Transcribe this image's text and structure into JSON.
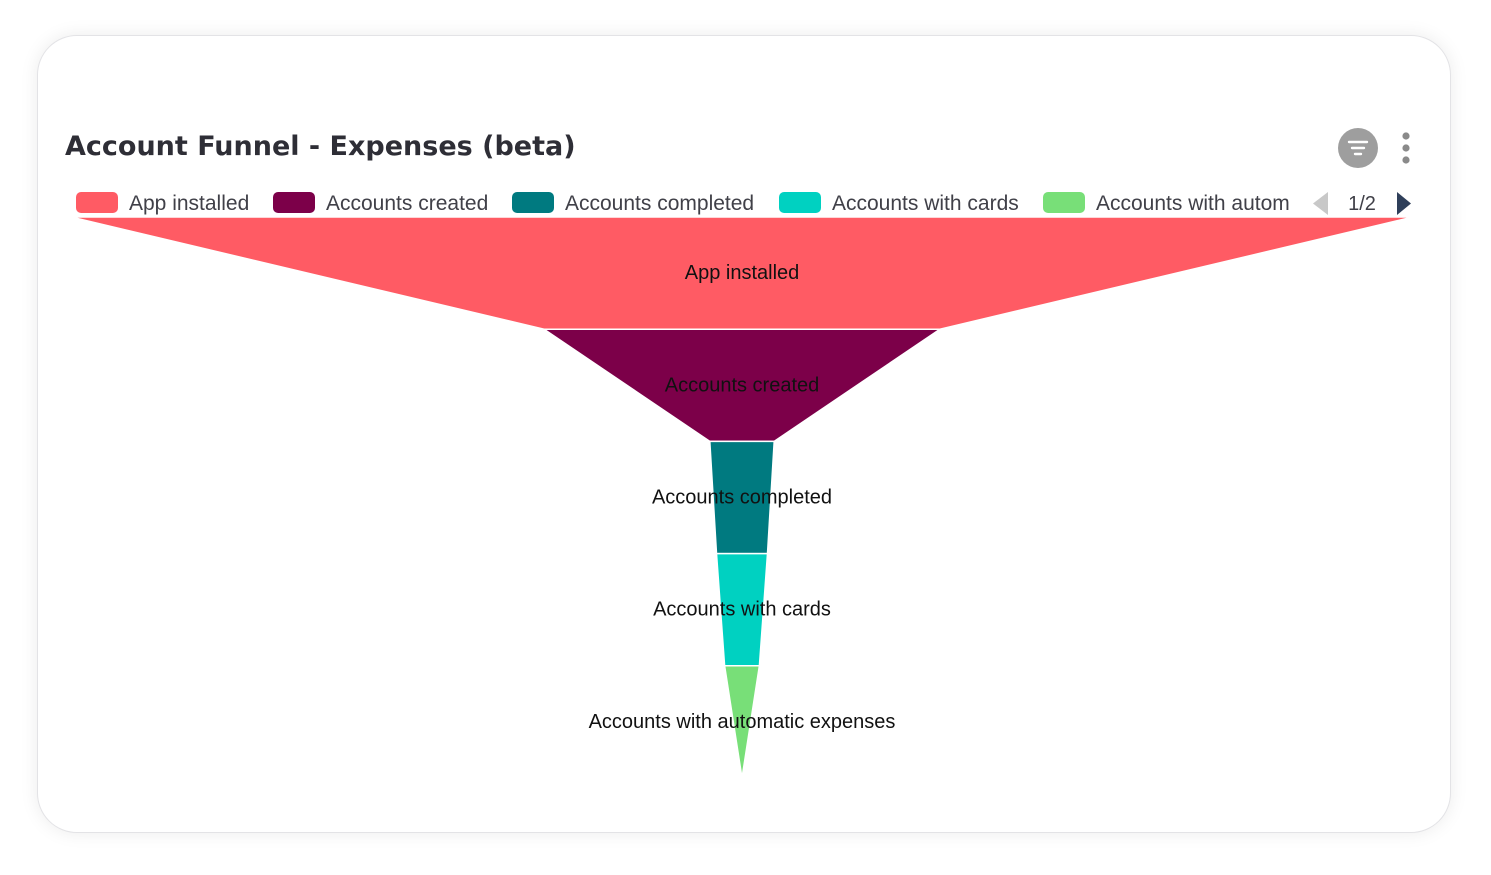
{
  "card": {
    "title": "Account Funnel - Expenses (beta)"
  },
  "icons": {
    "filter": "filter-icon",
    "more": "more-vertical-icon",
    "legend_prev": "caret-left-icon",
    "legend_next": "caret-right-icon"
  },
  "legend": {
    "page_indicator": "1/2",
    "position": "top",
    "truncated_last_label": "Accounts with autom",
    "prev_color": "#c8c8c8",
    "next_color": "#2f3f5a"
  },
  "colors": {
    "title": "#2e2e36",
    "filter_button": "#9e9e9e",
    "more_dots": "#8a8a8a"
  },
  "chart_data": {
    "type": "funnel",
    "title": "",
    "stages": [
      {
        "name": "App installed",
        "label": "App installed",
        "color": "#ff5b64"
      },
      {
        "name": "Accounts created",
        "label": "Accounts created",
        "color": "#7c0049"
      },
      {
        "name": "Accounts completed",
        "label": "Accounts completed",
        "color": "#007a80"
      },
      {
        "name": "Accounts with cards",
        "label": "Accounts with cards",
        "color": "#00d1c1"
      },
      {
        "name": "Accounts with automatic expenses",
        "label": "Accounts with automatic expenses",
        "color": "#78df78"
      }
    ],
    "relative_widths": [
      1.0,
      0.295,
      0.048,
      0.038,
      0.026,
      0.0
    ]
  }
}
